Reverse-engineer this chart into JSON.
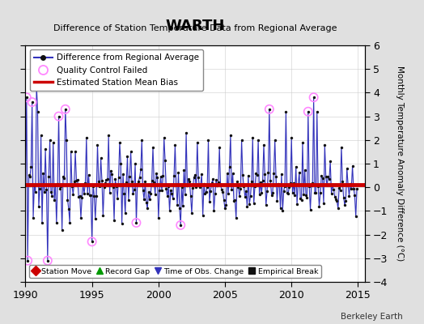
{
  "title": "WARTH",
  "subtitle": "Difference of Station Temperature Data from Regional Average",
  "ylabel_right": "Monthly Temperature Anomaly Difference (°C)",
  "xlim": [
    1990,
    2015.5
  ],
  "ylim": [
    -4,
    6
  ],
  "yticks": [
    -4,
    -3,
    -2,
    -1,
    0,
    1,
    2,
    3,
    4,
    5,
    6
  ],
  "xticks": [
    1990,
    1995,
    2000,
    2005,
    2010,
    2015
  ],
  "mean_bias": 0.12,
  "background_color": "#e0e0e0",
  "plot_bg_color": "#ffffff",
  "line_color": "#3333bb",
  "fill_color": "#9999dd",
  "marker_color": "#111111",
  "qc_color": "#ff88ff",
  "bias_color": "#cc0000",
  "bottom_legend": [
    {
      "label": "Station Move",
      "color": "#cc0000",
      "marker": "D"
    },
    {
      "label": "Record Gap",
      "color": "#009900",
      "marker": "^"
    },
    {
      "label": "Time of Obs. Change",
      "color": "#3333bb",
      "marker": "v"
    },
    {
      "label": "Empirical Break",
      "color": "#111111",
      "marker": "s"
    }
  ],
  "credit": "Berkeley Earth"
}
